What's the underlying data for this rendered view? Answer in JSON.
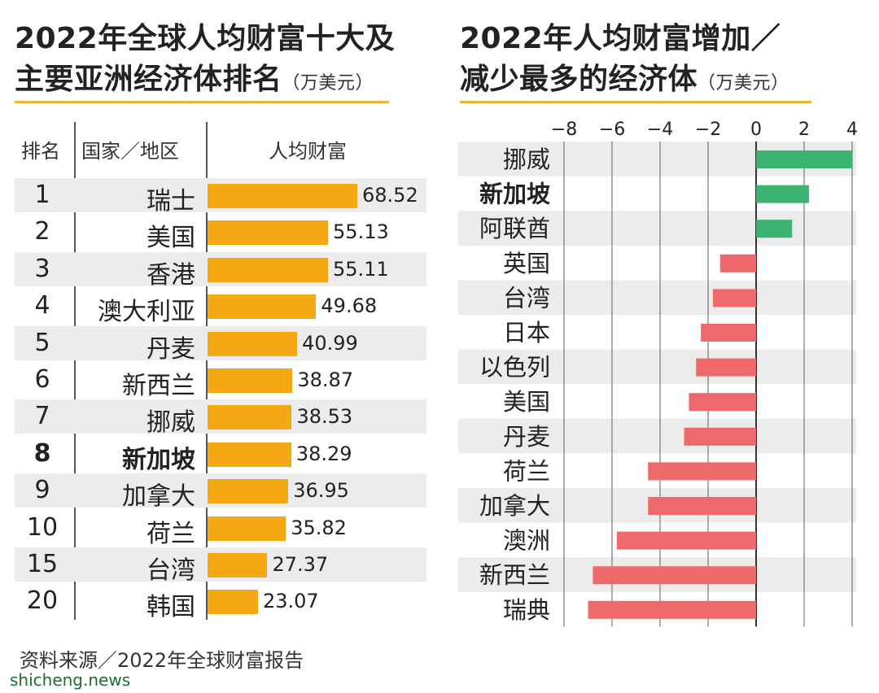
{
  "left": {
    "title_line1": "2022年全球人均财富十大及",
    "title_line2": "主要亚洲经济体排名",
    "unit": "（万美元）",
    "headers": {
      "rank": "排名",
      "country": "国家／地区",
      "wealth": "人均财富"
    }
  },
  "right": {
    "title_line1": "2022年人均财富增加／",
    "title_line2": "减少最多的经济体",
    "unit": "（万美元）"
  },
  "source": "资料来源／2022年全球财富报告",
  "watermark": "shicheng.news",
  "colors": {
    "bar_left": "#f5a814",
    "positive": "#3cb371",
    "negative": "#ee6a6a",
    "rule": "#e9b43a"
  },
  "chart_data": [
    {
      "type": "bar",
      "orientation": "horizontal",
      "title": "2022年全球人均财富十大及主要亚洲经济体排名（万美元）",
      "columns": [
        "排名",
        "国家／地区",
        "人均财富"
      ],
      "ranks": [
        "1",
        "2",
        "3",
        "4",
        "5",
        "6",
        "7",
        "8",
        "9",
        "10",
        "15",
        "20"
      ],
      "categories": [
        "瑞士",
        "美国",
        "香港",
        "澳大利亚",
        "丹麦",
        "新西兰",
        "挪威",
        "新加坡",
        "加拿大",
        "荷兰",
        "台湾",
        "韩国"
      ],
      "values": [
        68.52,
        55.13,
        55.11,
        49.68,
        40.99,
        38.87,
        38.53,
        38.29,
        36.95,
        35.82,
        27.37,
        23.07
      ],
      "value_labels": [
        "68.52",
        "55.13",
        "55.11",
        "49.68",
        "40.99",
        "38.87",
        "38.53",
        "38.29",
        "36.95",
        "35.82",
        "27.37",
        "23.07"
      ],
      "highlight": "新加坡",
      "xlim": [
        0,
        70
      ]
    },
    {
      "type": "bar",
      "orientation": "horizontal",
      "title": "2022年人均财富增加／减少最多的经济体（万美元）",
      "categories": [
        "挪威",
        "新加坡",
        "阿联酋",
        "英国",
        "台湾",
        "日本",
        "以色列",
        "美国",
        "丹麦",
        "荷兰",
        "加拿大",
        "澳洲",
        "新西兰",
        "瑞典"
      ],
      "values": [
        4.0,
        2.2,
        1.5,
        -1.5,
        -1.8,
        -2.3,
        -2.5,
        -2.8,
        -3.0,
        -4.5,
        -4.5,
        -5.8,
        -6.8,
        -7.0
      ],
      "highlight": "新加坡",
      "xlim": [
        -8,
        4
      ],
      "xticks": [
        "−8",
        "−6",
        "−4",
        "−2",
        "0",
        "2",
        "4"
      ],
      "xtick_values": [
        -8,
        -6,
        -4,
        -2,
        0,
        2,
        4
      ],
      "grid": true
    }
  ]
}
